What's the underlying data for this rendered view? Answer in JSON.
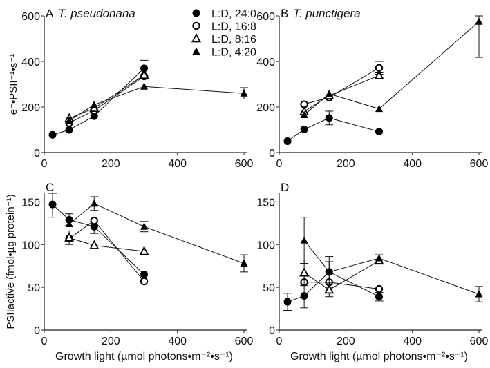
{
  "chart_data": [
    {
      "panel": "A",
      "title": "T. pseudonana",
      "type": "line",
      "ylabel": "e⁻•PSII⁻¹•s⁻¹",
      "xlabel": "",
      "xlim": [
        0,
        600
      ],
      "ylim": [
        0,
        600
      ],
      "xticks": [
        0,
        200,
        400,
        600
      ],
      "yticks": [
        0,
        200,
        400,
        600
      ],
      "series": [
        {
          "name": "L:D, 24:0",
          "marker": "filled-circle",
          "points": [
            [
              25,
              78,
              0
            ],
            [
              75,
              100,
              0
            ],
            [
              150,
              160,
              0
            ],
            [
              300,
              370,
              35
            ]
          ]
        },
        {
          "name": "L:D, 16:8",
          "marker": "open-circle",
          "points": [
            [
              75,
              130,
              0
            ],
            [
              150,
              185,
              0
            ],
            [
              300,
              335,
              0
            ]
          ]
        },
        {
          "name": "L:D, 8:16",
          "marker": "open-triangle",
          "points": [
            [
              75,
              150,
              0
            ],
            [
              150,
              195,
              0
            ],
            [
              300,
              340,
              0
            ]
          ]
        },
        {
          "name": "L:D, 4:20",
          "marker": "filled-triangle",
          "points": [
            [
              75,
              140,
              0
            ],
            [
              150,
              210,
              0
            ],
            [
              300,
              290,
              0
            ],
            [
              600,
              260,
              25
            ]
          ]
        }
      ]
    },
    {
      "panel": "B",
      "title": "T. punctigera",
      "type": "line",
      "ylabel": "",
      "xlabel": "",
      "xlim": [
        0,
        600
      ],
      "ylim": [
        0,
        600
      ],
      "xticks": [
        0,
        200,
        400,
        600
      ],
      "yticks": [
        0,
        200,
        400,
        600
      ],
      "series": [
        {
          "name": "L:D, 24:0",
          "marker": "filled-circle",
          "points": [
            [
              25,
              50,
              0
            ],
            [
              75,
              102,
              0
            ],
            [
              150,
              152,
              30
            ],
            [
              300,
              92,
              0
            ]
          ]
        },
        {
          "name": "L:D, 16:8",
          "marker": "open-circle",
          "points": [
            [
              75,
              212,
              0
            ],
            [
              150,
              242,
              0
            ],
            [
              300,
              372,
              28
            ]
          ]
        },
        {
          "name": "L:D, 8:16",
          "marker": "open-triangle",
          "points": [
            [
              75,
              180,
              0
            ],
            [
              150,
              250,
              0
            ],
            [
              300,
              338,
              12
            ]
          ]
        },
        {
          "name": "L:D, 4:20",
          "marker": "filled-triangle",
          "points": [
            [
              75,
              165,
              0
            ],
            [
              150,
              258,
              0
            ],
            [
              300,
              192,
              0
            ],
            [
              600,
              575,
              157
            ]
          ]
        }
      ]
    },
    {
      "panel": "C",
      "title": "",
      "type": "line",
      "ylabel": "PSIIactive (fmol•µg protein⁻¹)",
      "xlabel": "Growth light (µmol photons•m⁻²•s⁻¹)",
      "xlim": [
        0,
        600
      ],
      "ylim": [
        0,
        160
      ],
      "xticks": [
        0,
        200,
        400,
        600
      ],
      "yticks": [
        0,
        50,
        100,
        150
      ],
      "series": [
        {
          "name": "L:D, 24:0",
          "marker": "filled-circle",
          "points": [
            [
              25,
              147,
              15
            ],
            [
              75,
              129,
              7
            ],
            [
              150,
              121,
              8
            ],
            [
              300,
              65,
              0
            ]
          ]
        },
        {
          "name": "L:D, 16:8",
          "marker": "open-circle",
          "points": [
            [
              75,
              107,
              0
            ],
            [
              150,
              128,
              0
            ],
            [
              300,
              57,
              0
            ]
          ]
        },
        {
          "name": "L:D, 8:16",
          "marker": "open-triangle",
          "points": [
            [
              75,
              108,
              8
            ],
            [
              150,
              99,
              0
            ],
            [
              300,
              92,
              0
            ]
          ]
        },
        {
          "name": "L:D, 4:20",
          "marker": "filled-triangle",
          "points": [
            [
              75,
              124,
              0
            ],
            [
              150,
              148,
              8
            ],
            [
              300,
              121,
              6
            ],
            [
              600,
              78,
              10
            ]
          ]
        }
      ]
    },
    {
      "panel": "D",
      "title": "",
      "type": "line",
      "ylabel": "",
      "xlabel": "Growth light (µmol photons•m⁻²•s⁻¹)",
      "xlim": [
        0,
        600
      ],
      "ylim": [
        0,
        160
      ],
      "xticks": [
        0,
        200,
        400,
        600
      ],
      "yticks": [
        0,
        50,
        100,
        150
      ],
      "series": [
        {
          "name": "L:D, 24:0",
          "marker": "filled-circle",
          "points": [
            [
              25,
              33,
              10
            ],
            [
              75,
              40,
              14
            ],
            [
              150,
              68,
              12
            ],
            [
              300,
              39,
              5
            ]
          ]
        },
        {
          "name": "L:D, 16:8",
          "marker": "open-circle",
          "points": [
            [
              75,
              56,
              0
            ],
            [
              150,
              56,
              0
            ],
            [
              300,
              48,
              0
            ]
          ]
        },
        {
          "name": "L:D, 8:16",
          "marker": "open-triangle",
          "points": [
            [
              75,
              67,
              15
            ],
            [
              150,
              47,
              8
            ],
            [
              300,
              81,
              7
            ]
          ]
        },
        {
          "name": "L:D, 4:20",
          "marker": "filled-triangle",
          "points": [
            [
              75,
              105,
              27
            ],
            [
              150,
              68,
              18
            ],
            [
              300,
              84,
              6
            ],
            [
              600,
              42,
              9
            ]
          ]
        }
      ]
    }
  ],
  "legend": {
    "placement": "top-right of panel A",
    "entries": [
      {
        "label": "L:D, 24:0",
        "marker": "filled-circle"
      },
      {
        "label": "L:D, 16:8",
        "marker": "open-circle"
      },
      {
        "label": "L:D, 8:16",
        "marker": "open-triangle"
      },
      {
        "label": "L:D, 4:20",
        "marker": "filled-triangle"
      }
    ]
  }
}
